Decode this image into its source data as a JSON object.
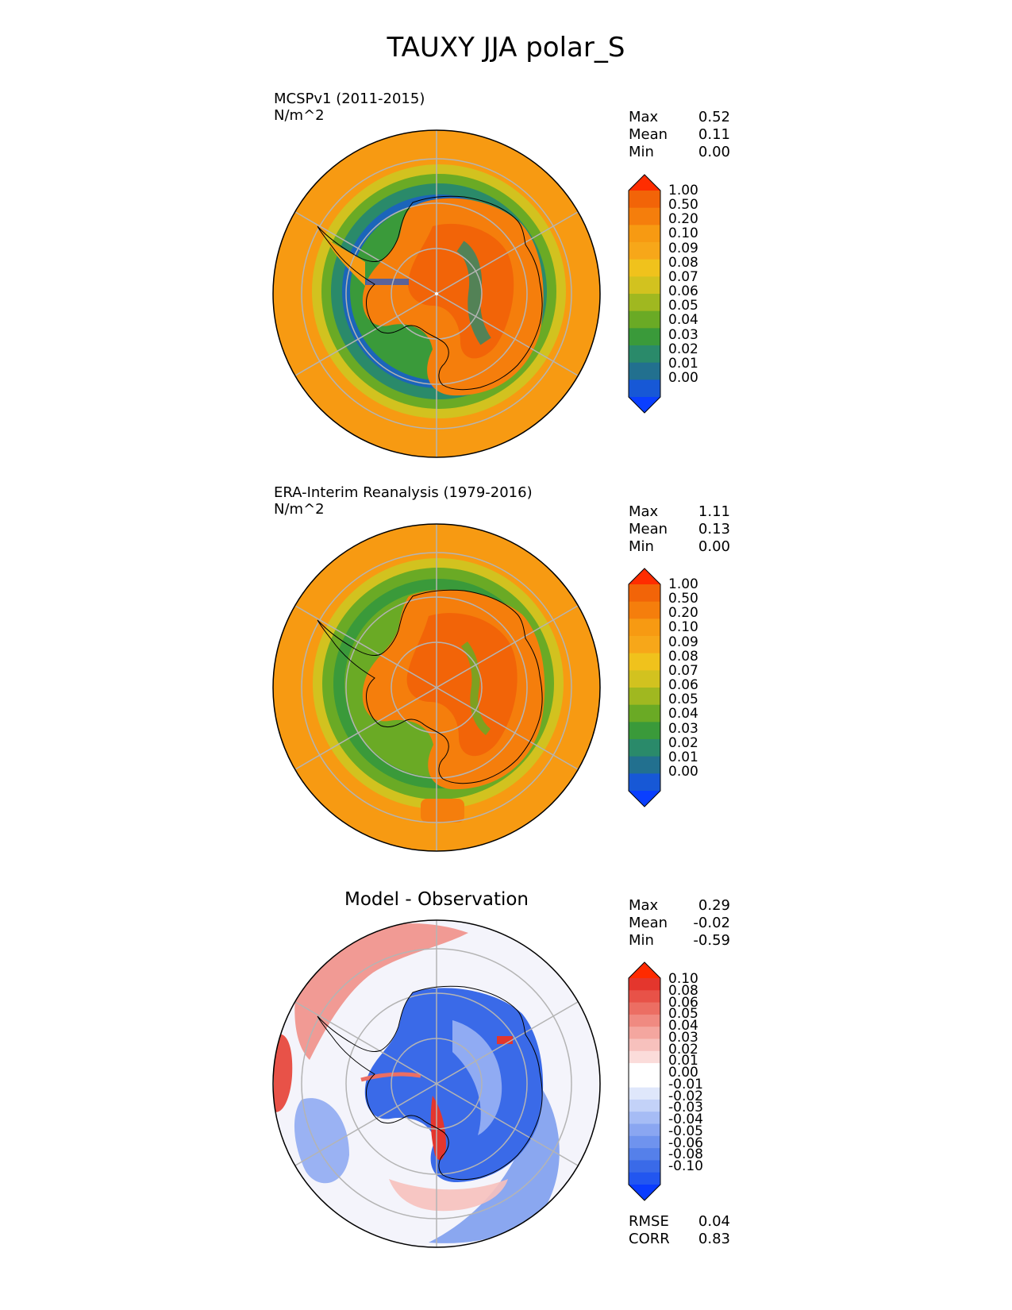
{
  "figure_title": "TAUXY JJA polar_S",
  "colors": {
    "sequential": [
      "#0a3fff",
      "#1758d6",
      "#22708f",
      "#2a8a6a",
      "#3a9a3a",
      "#6aaa25",
      "#a0b820",
      "#d2c21f",
      "#f0c21c",
      "#f7a719",
      "#f79a12",
      "#f57e0c",
      "#f26408",
      "#ff2d00"
    ],
    "diverging": [
      "#0a3cff",
      "#2256f0",
      "#3a6ae8",
      "#5580ea",
      "#6f93ee",
      "#8aa6f1",
      "#a6bcf5",
      "#c3d2f8",
      "#dfe7fb",
      "#ffffff",
      "#ffffff",
      "#fbdcda",
      "#f7c1bd",
      "#f4a69f",
      "#f08a81",
      "#ec6e63",
      "#e85248",
      "#e4362d",
      "#ff2a00"
    ],
    "ocean_fill": "#f79a12",
    "gridline": "#b4b4b4",
    "coast": "#000000"
  },
  "chart_data": [
    {
      "type": "heatmap",
      "panel": "test",
      "title": "MCSPv1 (2011-2015)",
      "units": "N/m^2",
      "stats": [
        {
          "label": "Max",
          "value": "0.52"
        },
        {
          "label": "Mean",
          "value": "0.11"
        },
        {
          "label": "Min",
          "value": "0.00"
        }
      ],
      "colorbar_ticks": [
        "1.00",
        "0.50",
        "0.20",
        "0.10",
        "0.09",
        "0.08",
        "0.07",
        "0.06",
        "0.05",
        "0.04",
        "0.03",
        "0.02",
        "0.01",
        "0.00"
      ],
      "projection": "south polar stereographic"
    },
    {
      "type": "heatmap",
      "panel": "reference",
      "title": "ERA-Interim Reanalysis (1979-2016)",
      "units": "N/m^2",
      "stats": [
        {
          "label": "Max",
          "value": "1.11"
        },
        {
          "label": "Mean",
          "value": "0.13"
        },
        {
          "label": "Min",
          "value": "0.00"
        }
      ],
      "colorbar_ticks": [
        "1.00",
        "0.50",
        "0.20",
        "0.10",
        "0.09",
        "0.08",
        "0.07",
        "0.06",
        "0.05",
        "0.04",
        "0.03",
        "0.02",
        "0.01",
        "0.00"
      ],
      "projection": "south polar stereographic"
    },
    {
      "type": "heatmap",
      "panel": "difference",
      "title": "Model - Observation",
      "stats": [
        {
          "label": "Max",
          "value": "0.29"
        },
        {
          "label": "Mean",
          "value": "-0.02"
        },
        {
          "label": "Min",
          "value": "-0.59"
        }
      ],
      "colorbar_ticks": [
        "0.10",
        "0.08",
        "0.06",
        "0.05",
        "0.04",
        "0.03",
        "0.02",
        "0.01",
        "0.00",
        "-0.01",
        "-0.02",
        "-0.03",
        "-0.04",
        "-0.05",
        "-0.06",
        "-0.08",
        "-0.10"
      ],
      "extra_stats": [
        {
          "label": "RMSE",
          "value": "0.04"
        },
        {
          "label": "CORR",
          "value": "0.83"
        }
      ],
      "projection": "south polar stereographic"
    }
  ]
}
